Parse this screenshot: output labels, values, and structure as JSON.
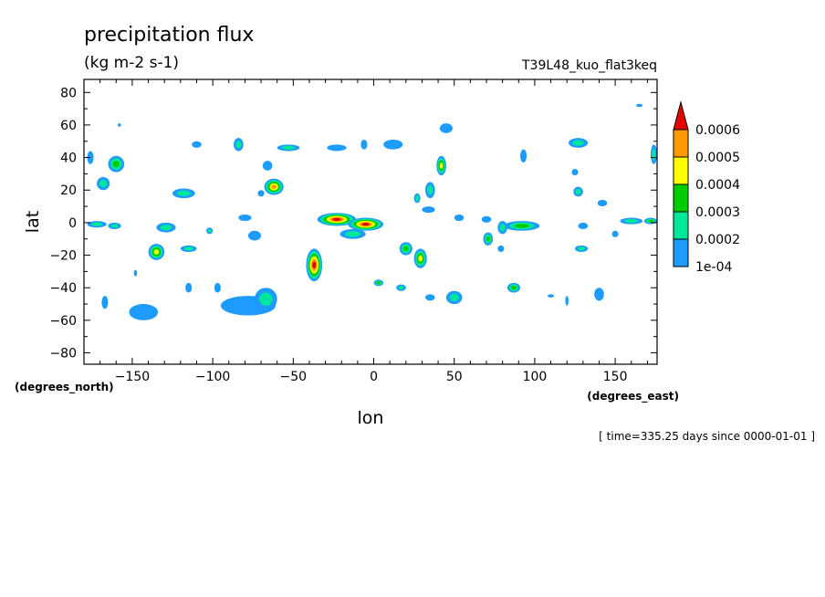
{
  "chart_data": {
    "type": "heatmap",
    "title": "precipitation flux",
    "units": "(kg m-2 s-1)",
    "dataset": "T39L48_kuo_flat3keq",
    "xlabel": "lon",
    "ylabel": "lat",
    "x_unit_label": "(degrees_east)",
    "y_unit_label": "(degrees_north)",
    "time_label": "[ time=335.25 days since 0000-01-01 ]",
    "xlim": [
      -180,
      176
    ],
    "ylim": [
      -87,
      88
    ],
    "x_ticks": [
      -150,
      -100,
      -50,
      0,
      50,
      100,
      150
    ],
    "x_tick_labels": [
      "−150",
      "−100",
      "−50",
      "0",
      "50",
      "100",
      "150"
    ],
    "y_ticks": [
      -80,
      -60,
      -40,
      -20,
      0,
      20,
      40,
      60,
      80
    ],
    "y_tick_labels": [
      "−80",
      "−60",
      "−40",
      "−20",
      "0",
      "20",
      "40",
      "60",
      "80"
    ],
    "colorbar": {
      "levels": [
        0.0001,
        0.0002,
        0.0003,
        0.0004,
        0.0005,
        0.0006
      ],
      "labels": [
        "1e-04",
        "0.0002",
        "0.0003",
        "0.0004",
        "0.0005",
        "0.0006"
      ],
      "colors": [
        "#1e9bff",
        "#00e69b",
        "#00cc00",
        "#ffff00",
        "#ff9900",
        "#e60000"
      ],
      "extend": "max"
    },
    "blobs": [
      {
        "lon": -160,
        "lat": 36,
        "rlon": 5,
        "rlat": 5,
        "level": 3
      },
      {
        "lon": -168,
        "lat": 24,
        "rlon": 4,
        "rlat": 4,
        "level": 2
      },
      {
        "lon": -176,
        "lat": 40,
        "rlon": 2,
        "rlat": 4,
        "level": 1
      },
      {
        "lon": -172,
        "lat": -1,
        "rlon": 6,
        "rlat": 2,
        "level": 2
      },
      {
        "lon": -161,
        "lat": -2,
        "rlon": 4,
        "rlat": 2,
        "level": 2
      },
      {
        "lon": -167,
        "lat": -49,
        "rlon": 2,
        "rlat": 4,
        "level": 1
      },
      {
        "lon": -143,
        "lat": -55,
        "rlon": 9,
        "rlat": 5,
        "level": 1
      },
      {
        "lon": -135,
        "lat": -18,
        "rlon": 5,
        "rlat": 5,
        "level": 4
      },
      {
        "lon": -129,
        "lat": -3,
        "rlon": 6,
        "rlat": 3,
        "level": 2
      },
      {
        "lon": -118,
        "lat": 18,
        "rlon": 7,
        "rlat": 3,
        "level": 2
      },
      {
        "lon": -115,
        "lat": -16,
        "rlon": 5,
        "rlat": 2,
        "level": 2
      },
      {
        "lon": -110,
        "lat": 48,
        "rlon": 3,
        "rlat": 2,
        "level": 1
      },
      {
        "lon": -102,
        "lat": -5,
        "rlon": 2,
        "rlat": 2,
        "level": 2
      },
      {
        "lon": -115,
        "lat": -40,
        "rlon": 2,
        "rlat": 3,
        "level": 1
      },
      {
        "lon": -97,
        "lat": -40,
        "rlon": 2,
        "rlat": 3,
        "level": 1
      },
      {
        "lon": -84,
        "lat": 48,
        "rlon": 3,
        "rlat": 4,
        "level": 2
      },
      {
        "lon": -74,
        "lat": -8,
        "rlon": 4,
        "rlat": 3,
        "level": 1
      },
      {
        "lon": -80,
        "lat": 3,
        "rlon": 4,
        "rlat": 2,
        "level": 1
      },
      {
        "lon": -62,
        "lat": 22,
        "rlon": 6,
        "rlat": 5,
        "level": 5
      },
      {
        "lon": -66,
        "lat": 35,
        "rlon": 3,
        "rlat": 3,
        "level": 1
      },
      {
        "lon": -53,
        "lat": 46,
        "rlon": 7,
        "rlat": 2,
        "level": 2
      },
      {
        "lon": -78,
        "lat": -51,
        "rlon": 17,
        "rlat": 6,
        "level": 1
      },
      {
        "lon": -67,
        "lat": -47,
        "rlon": 7,
        "rlat": 7,
        "level": 2
      },
      {
        "lon": -37,
        "lat": -26,
        "rlon": 5,
        "rlat": 10,
        "level": 6
      },
      {
        "lon": -23,
        "lat": 2,
        "rlon": 12,
        "rlat": 4,
        "level": 6
      },
      {
        "lon": -5,
        "lat": -1,
        "rlon": 11,
        "rlat": 4,
        "level": 6
      },
      {
        "lon": -13,
        "lat": -7,
        "rlon": 8,
        "rlat": 3,
        "level": 2
      },
      {
        "lon": -23,
        "lat": 46,
        "rlon": 6,
        "rlat": 2,
        "level": 1
      },
      {
        "lon": -6,
        "lat": 48,
        "rlon": 2,
        "rlat": 3,
        "level": 1
      },
      {
        "lon": 12,
        "lat": 48,
        "rlon": 6,
        "rlat": 3,
        "level": 1
      },
      {
        "lon": 3,
        "lat": -37,
        "rlon": 3,
        "rlat": 2,
        "level": 3
      },
      {
        "lon": 17,
        "lat": -40,
        "rlon": 3,
        "rlat": 2,
        "level": 2
      },
      {
        "lon": 20,
        "lat": -16,
        "rlon": 4,
        "rlat": 4,
        "level": 3
      },
      {
        "lon": 29,
        "lat": -22,
        "rlon": 4,
        "rlat": 6,
        "level": 4
      },
      {
        "lon": 42,
        "lat": 35,
        "rlon": 3,
        "rlat": 6,
        "level": 4
      },
      {
        "lon": 35,
        "lat": 20,
        "rlon": 3,
        "rlat": 5,
        "level": 2
      },
      {
        "lon": 27,
        "lat": 15,
        "rlon": 2,
        "rlat": 3,
        "level": 2
      },
      {
        "lon": 34,
        "lat": 8,
        "rlon": 4,
        "rlat": 2,
        "level": 1
      },
      {
        "lon": 45,
        "lat": 58,
        "rlon": 4,
        "rlat": 3,
        "level": 1
      },
      {
        "lon": 50,
        "lat": -46,
        "rlon": 5,
        "rlat": 4,
        "level": 2
      },
      {
        "lon": 35,
        "lat": -46,
        "rlon": 3,
        "rlat": 2,
        "level": 1
      },
      {
        "lon": 53,
        "lat": 3,
        "rlon": 3,
        "rlat": 2,
        "level": 1
      },
      {
        "lon": 70,
        "lat": 2,
        "rlon": 3,
        "rlat": 2,
        "level": 1
      },
      {
        "lon": 71,
        "lat": -10,
        "rlon": 3,
        "rlat": 4,
        "level": 3
      },
      {
        "lon": 79,
        "lat": -16,
        "rlon": 2,
        "rlat": 2,
        "level": 1
      },
      {
        "lon": 92,
        "lat": -2,
        "rlon": 11,
        "rlat": 3,
        "level": 3
      },
      {
        "lon": 80,
        "lat": -3,
        "rlon": 3,
        "rlat": 4,
        "level": 2
      },
      {
        "lon": 87,
        "lat": -40,
        "rlon": 4,
        "rlat": 3,
        "level": 3
      },
      {
        "lon": 93,
        "lat": 41,
        "rlon": 2,
        "rlat": 4,
        "level": 1
      },
      {
        "lon": 127,
        "lat": 49,
        "rlon": 6,
        "rlat": 3,
        "level": 2
      },
      {
        "lon": 127,
        "lat": 19,
        "rlon": 3,
        "rlat": 3,
        "level": 2
      },
      {
        "lon": 125,
        "lat": 31,
        "rlon": 2,
        "rlat": 2,
        "level": 1
      },
      {
        "lon": 129,
        "lat": -16,
        "rlon": 4,
        "rlat": 2,
        "level": 2
      },
      {
        "lon": 130,
        "lat": -2,
        "rlon": 3,
        "rlat": 2,
        "level": 1
      },
      {
        "lon": 142,
        "lat": 12,
        "rlon": 3,
        "rlat": 2,
        "level": 1
      },
      {
        "lon": 140,
        "lat": -44,
        "rlon": 3,
        "rlat": 4,
        "level": 1
      },
      {
        "lon": 150,
        "lat": -7,
        "rlon": 2,
        "rlat": 2,
        "level": 1
      },
      {
        "lon": 160,
        "lat": 1,
        "rlon": 7,
        "rlat": 2,
        "level": 2
      },
      {
        "lon": 172,
        "lat": 1,
        "rlon": 4,
        "rlat": 2,
        "level": 3
      },
      {
        "lon": 174,
        "lat": 42,
        "rlon": 2,
        "rlat": 6,
        "level": 2
      },
      {
        "lon": 165,
        "lat": 72,
        "rlon": 2,
        "rlat": 1,
        "level": 1
      },
      {
        "lon": -158,
        "lat": 60,
        "rlon": 1,
        "rlat": 1,
        "level": 1
      },
      {
        "lon": -148,
        "lat": -31,
        "rlon": 1,
        "rlat": 2,
        "level": 1
      },
      {
        "lon": -70,
        "lat": 18,
        "rlon": 2,
        "rlat": 2,
        "level": 1
      },
      {
        "lon": 110,
        "lat": -45,
        "rlon": 2,
        "rlat": 1,
        "level": 1
      },
      {
        "lon": 120,
        "lat": -48,
        "rlon": 1,
        "rlat": 3,
        "level": 1
      }
    ]
  }
}
